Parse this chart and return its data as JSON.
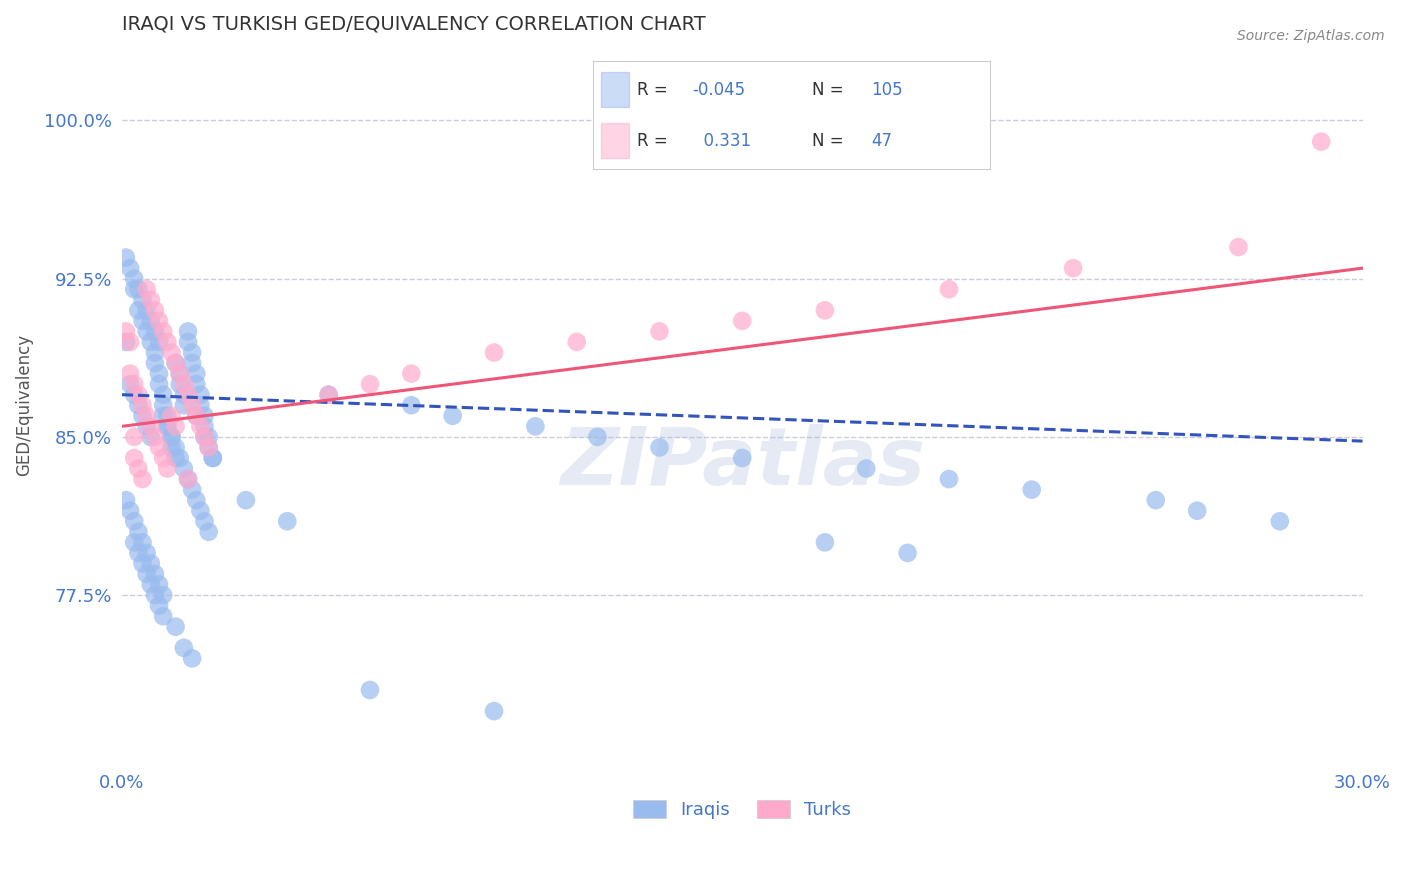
{
  "title": "IRAQI VS TURKISH GED/EQUIVALENCY CORRELATION CHART",
  "source": "Source: ZipAtlas.com",
  "ylabel": "GED/Equivalency",
  "xlim": [
    0.0,
    0.3
  ],
  "ylim": [
    0.695,
    1.035
  ],
  "yticks": [
    0.775,
    0.85,
    0.925,
    1.0
  ],
  "ytick_labels": [
    "77.5%",
    "85.0%",
    "92.5%",
    "100.0%"
  ],
  "xticks": [
    0.0,
    0.3
  ],
  "xtick_labels": [
    "0.0%",
    "30.0%"
  ],
  "title_fontsize": 14,
  "axis_color": "#4477CC",
  "grid_color": "#CCCCDD",
  "watermark": "ZIPatlas",
  "legend_R1": "-0.045",
  "legend_N1": "105",
  "legend_R2": "0.331",
  "legend_N2": "47",
  "iraqis_color": "#99BBEE",
  "turks_color": "#FFAACC",
  "iraqis_line_color": "#3355BB",
  "turks_line_color": "#EE5577",
  "iraqis_x": [
    0.002,
    0.003,
    0.003,
    0.004,
    0.004,
    0.005,
    0.005,
    0.006,
    0.006,
    0.007,
    0.007,
    0.008,
    0.008,
    0.009,
    0.009,
    0.01,
    0.01,
    0.011,
    0.011,
    0.012,
    0.012,
    0.013,
    0.013,
    0.014,
    0.014,
    0.015,
    0.015,
    0.016,
    0.016,
    0.017,
    0.017,
    0.018,
    0.018,
    0.019,
    0.019,
    0.02,
    0.02,
    0.021,
    0.021,
    0.022,
    0.001,
    0.001,
    0.002,
    0.003,
    0.004,
    0.005,
    0.006,
    0.007,
    0.008,
    0.009,
    0.01,
    0.011,
    0.012,
    0.013,
    0.014,
    0.015,
    0.016,
    0.017,
    0.018,
    0.019,
    0.02,
    0.021,
    0.003,
    0.004,
    0.005,
    0.006,
    0.007,
    0.008,
    0.009,
    0.01,
    0.001,
    0.002,
    0.003,
    0.004,
    0.005,
    0.006,
    0.007,
    0.008,
    0.009,
    0.01,
    0.05,
    0.07,
    0.08,
    0.1,
    0.115,
    0.13,
    0.15,
    0.18,
    0.2,
    0.22,
    0.25,
    0.26,
    0.28,
    0.17,
    0.19,
    0.013,
    0.015,
    0.017,
    0.018,
    0.02,
    0.022,
    0.03,
    0.04,
    0.06,
    0.09
  ],
  "iraqis_y": [
    0.875,
    0.87,
    0.92,
    0.865,
    0.91,
    0.86,
    0.905,
    0.855,
    0.9,
    0.85,
    0.895,
    0.89,
    0.885,
    0.88,
    0.875,
    0.87,
    0.865,
    0.86,
    0.855,
    0.85,
    0.845,
    0.84,
    0.885,
    0.88,
    0.875,
    0.87,
    0.865,
    0.9,
    0.895,
    0.89,
    0.885,
    0.88,
    0.875,
    0.87,
    0.865,
    0.86,
    0.855,
    0.85,
    0.845,
    0.84,
    0.935,
    0.895,
    0.93,
    0.925,
    0.92,
    0.915,
    0.91,
    0.905,
    0.9,
    0.895,
    0.86,
    0.855,
    0.85,
    0.845,
    0.84,
    0.835,
    0.83,
    0.825,
    0.82,
    0.815,
    0.81,
    0.805,
    0.8,
    0.795,
    0.79,
    0.785,
    0.78,
    0.775,
    0.77,
    0.765,
    0.82,
    0.815,
    0.81,
    0.805,
    0.8,
    0.795,
    0.79,
    0.785,
    0.78,
    0.775,
    0.87,
    0.865,
    0.86,
    0.855,
    0.85,
    0.845,
    0.84,
    0.835,
    0.83,
    0.825,
    0.82,
    0.815,
    0.81,
    0.8,
    0.795,
    0.76,
    0.75,
    0.745,
    0.86,
    0.85,
    0.84,
    0.82,
    0.81,
    0.73,
    0.72
  ],
  "turks_x": [
    0.002,
    0.003,
    0.004,
    0.005,
    0.006,
    0.007,
    0.008,
    0.009,
    0.01,
    0.011,
    0.012,
    0.013,
    0.014,
    0.015,
    0.016,
    0.017,
    0.018,
    0.019,
    0.02,
    0.021,
    0.003,
    0.004,
    0.005,
    0.006,
    0.007,
    0.008,
    0.009,
    0.01,
    0.011,
    0.012,
    0.013,
    0.001,
    0.002,
    0.003,
    0.05,
    0.06,
    0.07,
    0.09,
    0.11,
    0.13,
    0.15,
    0.17,
    0.2,
    0.23,
    0.27,
    0.29,
    0.016
  ],
  "turks_y": [
    0.88,
    0.875,
    0.87,
    0.865,
    0.92,
    0.915,
    0.91,
    0.905,
    0.9,
    0.895,
    0.89,
    0.885,
    0.88,
    0.875,
    0.87,
    0.865,
    0.86,
    0.855,
    0.85,
    0.845,
    0.84,
    0.835,
    0.83,
    0.86,
    0.855,
    0.85,
    0.845,
    0.84,
    0.835,
    0.86,
    0.855,
    0.9,
    0.895,
    0.85,
    0.87,
    0.875,
    0.88,
    0.89,
    0.895,
    0.9,
    0.905,
    0.91,
    0.92,
    0.93,
    0.94,
    0.99,
    0.83
  ]
}
